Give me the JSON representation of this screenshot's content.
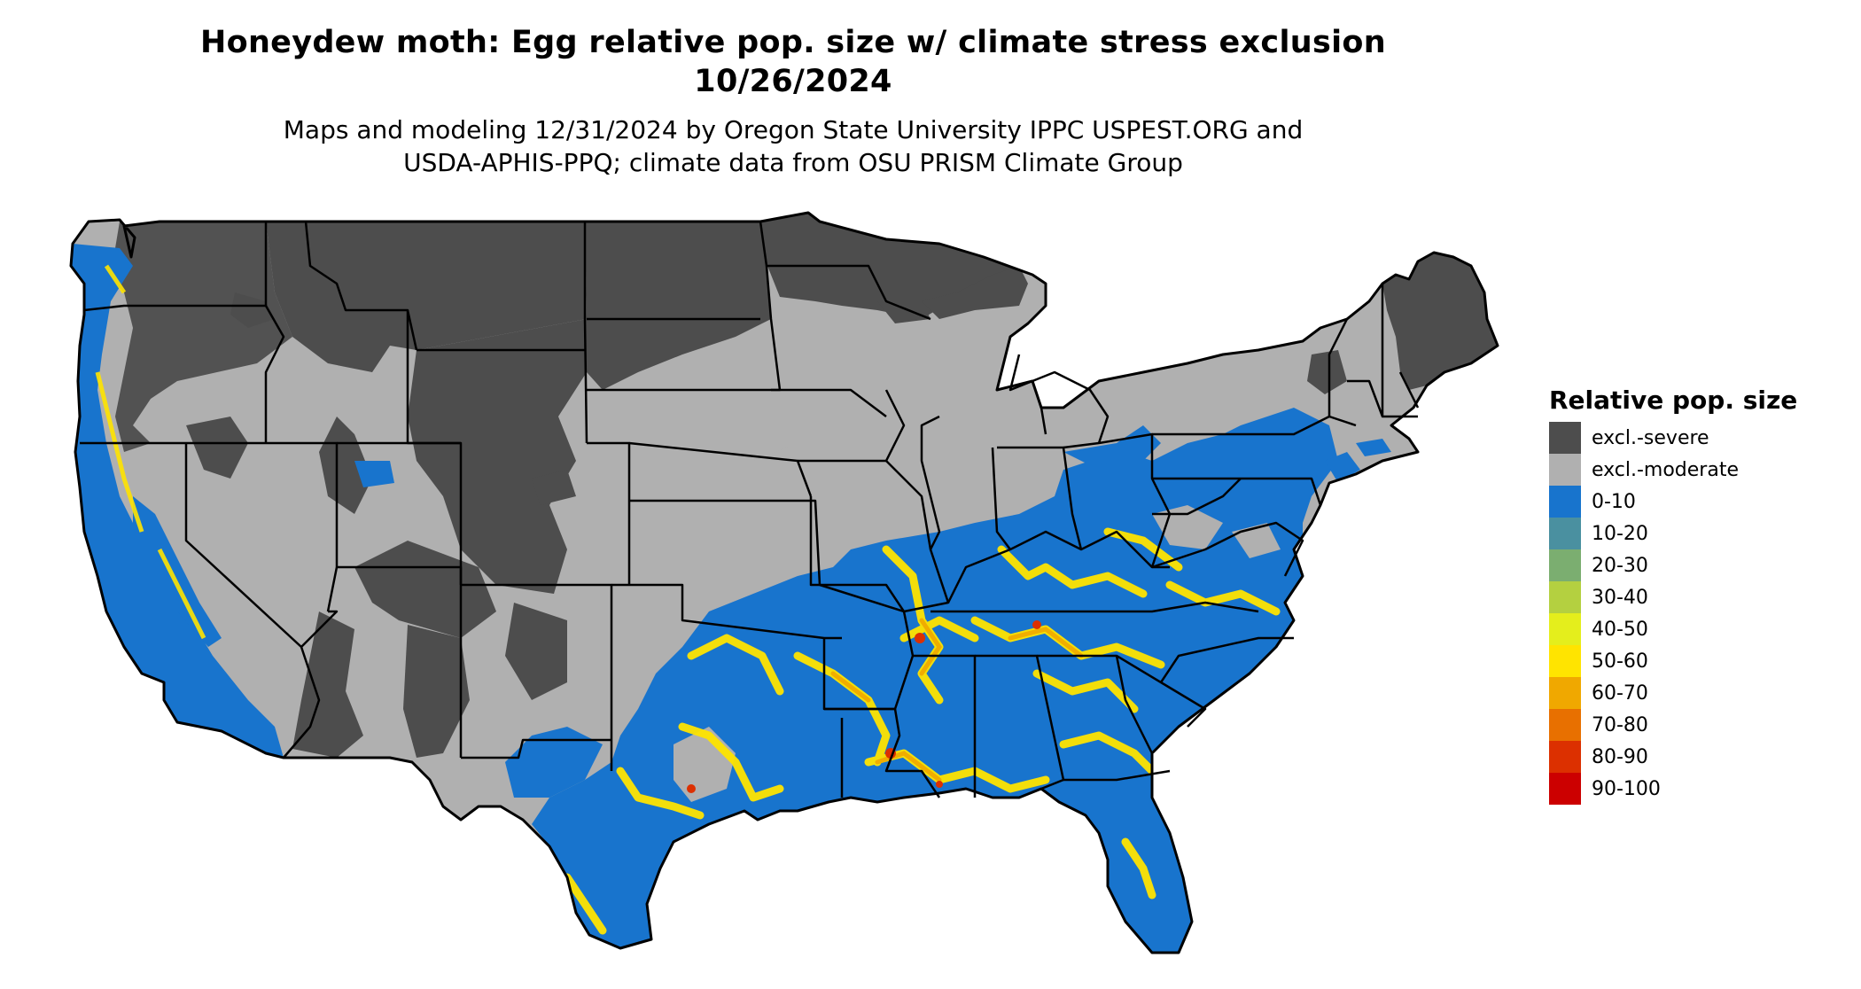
{
  "title_line1": "Honeydew moth: Egg relative pop. size w/ climate stress exclusion",
  "title_line2": "10/26/2024",
  "subtitle_line1": "Maps and modeling 12/31/2024 by Oregon State University IPPC USPEST.ORG and",
  "subtitle_line2": "USDA-APHIS-PPQ; climate data from OSU PRISM Climate Group",
  "legend": {
    "title": "Relative pop. size",
    "items": [
      {
        "label": "excl.-severe",
        "color": "#4d4d4d"
      },
      {
        "label": "excl.-moderate",
        "color": "#b0b0b0"
      },
      {
        "label": "0-10",
        "color": "#1874cd"
      },
      {
        "label": "10-20",
        "color": "#4a90a0"
      },
      {
        "label": "20-30",
        "color": "#7bae70"
      },
      {
        "label": "30-40",
        "color": "#b4d040"
      },
      {
        "label": "40-50",
        "color": "#e4ee1c"
      },
      {
        "label": "50-60",
        "color": "#ffe400"
      },
      {
        "label": "60-70",
        "color": "#f0a800"
      },
      {
        "label": "70-80",
        "color": "#e87000"
      },
      {
        "label": "80-90",
        "color": "#dc3000"
      },
      {
        "label": "90-100",
        "color": "#cc0000"
      }
    ]
  }
}
